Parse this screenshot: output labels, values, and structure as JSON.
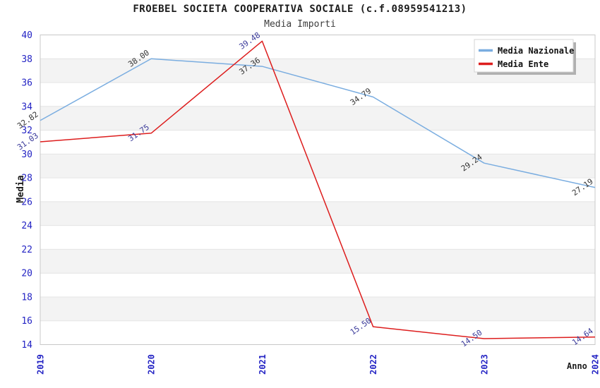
{
  "header": {
    "title": "FROEBEL SOCIETA COOPERATIVA SOCIALE (c.f.08959541213)",
    "subtitle": "Media Importi"
  },
  "chart_data": {
    "type": "line",
    "title": "FROEBEL SOCIETA COOPERATIVA SOCIALE (c.f.08959541213)",
    "subtitle": "Media Importi",
    "xlabel": "Anno",
    "ylabel": "Media",
    "categories": [
      "2019",
      "2020",
      "2021",
      "2022",
      "2023",
      "2024"
    ],
    "series": [
      {
        "name": "Media Nazionale",
        "values": [
          32.82,
          38.0,
          37.36,
          34.79,
          29.24,
          27.19
        ],
        "labels": [
          "32.82",
          "38.00",
          "37.36",
          "34.79",
          "29.24",
          "27.19"
        ],
        "color": "#7aade0",
        "label_color": "#333333"
      },
      {
        "name": "Media Ente",
        "values": [
          31.03,
          31.75,
          39.48,
          15.5,
          14.5,
          14.64
        ],
        "labels": [
          "31.03",
          "31.75",
          "39.48",
          "15.50",
          "14.50",
          "14.64"
        ],
        "color": "#dd1d1d",
        "label_color": "#3a3a9a"
      }
    ],
    "ylim": [
      14,
      40
    ],
    "y_ticks": [
      40,
      38,
      36,
      34,
      32,
      30,
      28,
      26,
      24,
      22,
      20,
      18,
      16,
      14
    ],
    "grid": true,
    "legend_position": "top-right",
    "colors": {
      "tick_label": "#2424c4",
      "band_gray": "#f3f3f3",
      "band_white": "#ffffff",
      "grid_line": "#e4e4e4",
      "plot_border": "#c8c8c8",
      "legend_bg": "#ffffff",
      "legend_border": "#d4d4d4",
      "legend_shadow": "#b0b0b0",
      "legend_text": "#111111"
    }
  }
}
